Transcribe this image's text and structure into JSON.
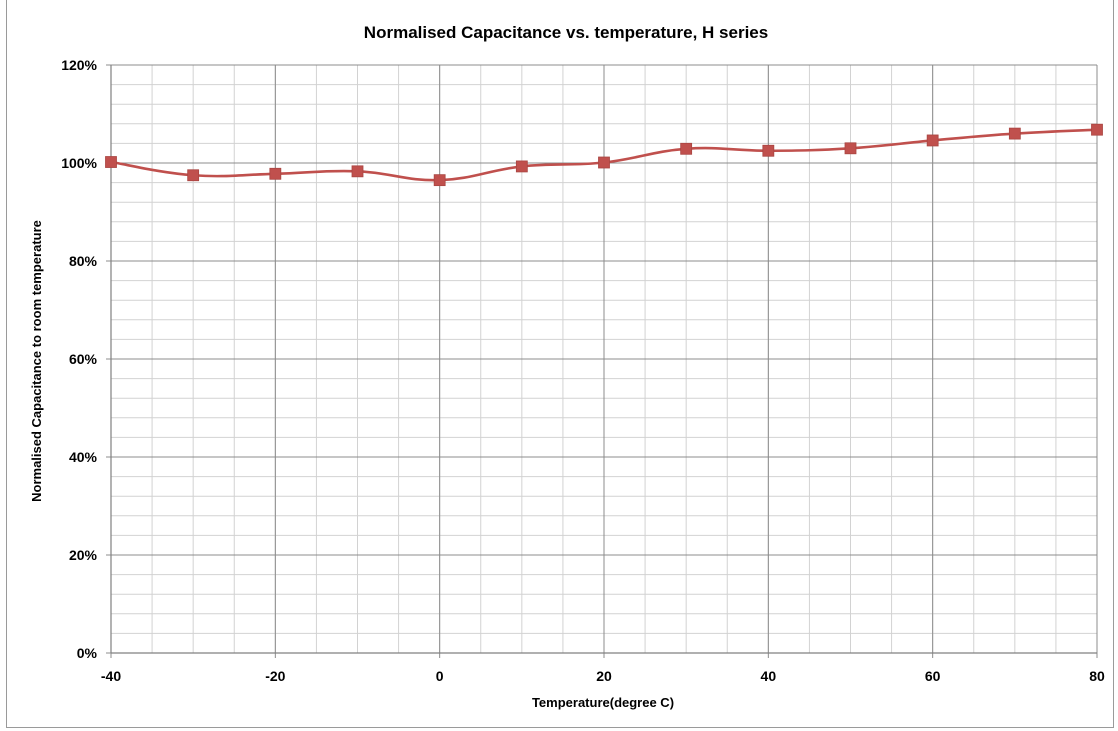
{
  "chart_data": {
    "type": "line",
    "title": "Normalised Capacitance vs. temperature, H series",
    "xlabel": "Temperature(degree C)",
    "ylabel": "Normalised Capacitance to room temperature",
    "x": [
      -40,
      -30,
      -20,
      -10,
      0,
      10,
      20,
      30,
      40,
      50,
      60,
      70,
      80
    ],
    "series": [
      {
        "values": [
          100.2,
          97.5,
          97.8,
          98.3,
          96.5,
          99.3,
          100.1,
          102.9,
          102.5,
          103.0,
          104.6,
          106.0,
          106.8
        ]
      }
    ],
    "xlim": [
      -40,
      80
    ],
    "ylim": [
      0,
      120
    ],
    "x_ticks": [
      -40,
      -20,
      0,
      20,
      40,
      60,
      80
    ],
    "x_tick_labels": [
      "-40",
      "-20",
      "0",
      "20",
      "40",
      "60",
      "80"
    ],
    "y_ticks": [
      0,
      20,
      40,
      60,
      80,
      100,
      120
    ],
    "y_tick_labels": [
      "0%",
      "20%",
      "40%",
      "60%",
      "80%",
      "100%",
      "120%"
    ],
    "x_minor_step": 5,
    "y_minor_step": 4,
    "grid": true,
    "legend": "none",
    "line_color": "#c0504d",
    "marker_color": "#c0504d",
    "marker": "square",
    "major_grid_color": "#8c8c8c",
    "minor_grid_color": "#d2d2d2"
  }
}
